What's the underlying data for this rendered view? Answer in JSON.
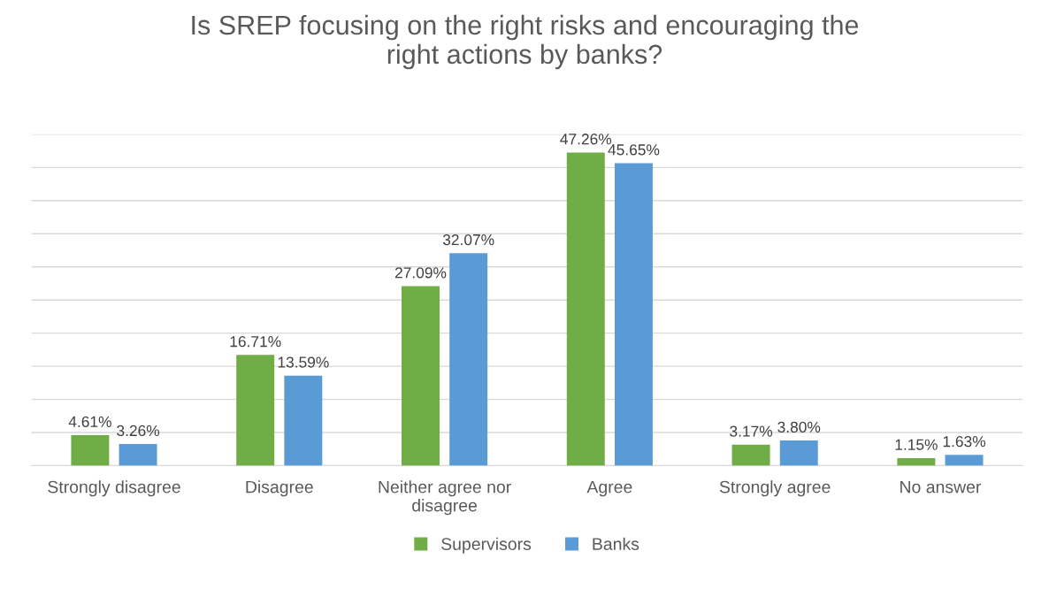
{
  "chart_data": {
    "type": "bar",
    "title": "Is SREP focusing on the right risks and encouraging the right actions by banks?",
    "categories": [
      "Strongly disagree",
      "Disagree",
      "Neither agree nor disagree",
      "Agree",
      "Strongly agree",
      "No answer"
    ],
    "series": [
      {
        "name": "Supervisors",
        "color": "#70ad47",
        "values": [
          4.61,
          16.71,
          27.09,
          47.26,
          3.17,
          1.15
        ],
        "value_labels": [
          "4.61%",
          "16.71%",
          "27.09%",
          "47.26%",
          "3.17%",
          "1.15%"
        ]
      },
      {
        "name": "Banks",
        "color": "#5b9bd5",
        "values": [
          3.26,
          13.59,
          32.07,
          45.65,
          3.8,
          1.63
        ],
        "value_labels": [
          "3.26%",
          "13.59%",
          "32.07%",
          "45.65%",
          "3.80%",
          "1.63%"
        ]
      }
    ],
    "ylim": [
      0,
      50
    ],
    "yticks": [
      {
        "value": 0,
        "label": null
      },
      {
        "value": 5,
        "label": null
      },
      {
        "value": 10,
        "label": null
      },
      {
        "value": 15,
        "label": null
      },
      {
        "value": 20,
        "label": null
      },
      {
        "value": 25,
        "label": null
      },
      {
        "value": 30,
        "label": null
      },
      {
        "value": 35,
        "label": null
      },
      {
        "value": 40,
        "label": null
      },
      {
        "value": 45,
        "label": null
      },
      {
        "value": 50,
        "label": null
      }
    ],
    "tick_labels": "x",
    "grid": "y",
    "legend": "bottom"
  }
}
